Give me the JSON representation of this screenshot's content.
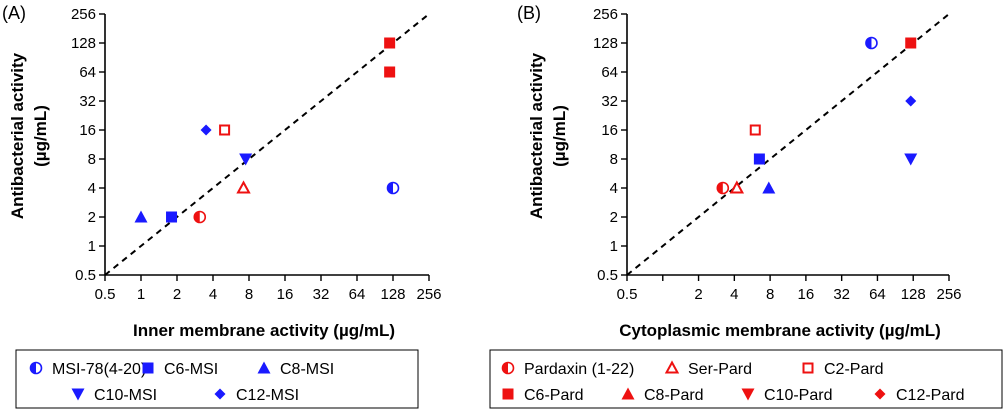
{
  "colors": {
    "blue": "#1a1aff",
    "red": "#ee1111"
  },
  "chart_data": [
    {
      "panel_label": "(A)",
      "type": "scatter",
      "xlabel": "Inner membrane activity (µg/mL)",
      "ylabel_line1": "Antibacterial activity",
      "ylabel_line2": "(µg/mL)",
      "x_scale": "log2",
      "y_scale": "log2",
      "xlim": [
        0.5,
        256
      ],
      "ylim": [
        0.5,
        256
      ],
      "ticks": [
        "0.5",
        "1",
        "2",
        "4",
        "8",
        "16",
        "32",
        "64",
        "128",
        "256"
      ],
      "reference_line": "y = x (dashed)",
      "legend_rows": [
        [
          {
            "name": "MSI-78(4-20)",
            "marker": "half-circle",
            "color": "blue"
          },
          {
            "name": "C6-MSI",
            "marker": "square",
            "color": "blue"
          },
          {
            "name": "C8-MSI",
            "marker": "triangle-up",
            "color": "blue"
          }
        ],
        [
          {
            "name": "C10-MSI",
            "marker": "triangle-down",
            "color": "blue"
          },
          {
            "name": "C12-MSI",
            "marker": "diamond",
            "color": "blue"
          }
        ]
      ],
      "series": [
        {
          "name": "MSI-78(4-20)",
          "marker": "half-circle",
          "color": "blue",
          "points": [
            [
              128,
              4
            ]
          ]
        },
        {
          "name": "C6-MSI",
          "marker": "square",
          "color": "blue",
          "points": [
            [
              1.8,
              2
            ]
          ]
        },
        {
          "name": "C8-MSI",
          "marker": "triangle-up",
          "color": "blue",
          "points": [
            [
              1,
              2
            ]
          ]
        },
        {
          "name": "C10-MSI",
          "marker": "triangle-down",
          "color": "blue",
          "points": [
            [
              7.5,
              8
            ]
          ]
        },
        {
          "name": "C12-MSI",
          "marker": "diamond",
          "color": "blue",
          "points": [
            [
              3.5,
              16
            ]
          ]
        },
        {
          "name": "Pardaxin (1-22)",
          "marker": "half-circle",
          "color": "red",
          "points": [
            [
              3.1,
              2
            ]
          ]
        },
        {
          "name": "Ser-Pard",
          "marker": "triangle-up-open",
          "color": "red",
          "points": [
            [
              7.2,
              4
            ]
          ]
        },
        {
          "name": "C2-Pard",
          "marker": "square-open",
          "color": "red",
          "points": [
            [
              5,
              16
            ]
          ]
        },
        {
          "name": "C6-Pard",
          "marker": "square",
          "color": "red",
          "points": [
            [
              120,
              64
            ],
            [
              120,
              128
            ]
          ]
        }
      ]
    },
    {
      "panel_label": "(B)",
      "type": "scatter",
      "xlabel": "Cytoplasmic membrane activity (µg/mL)",
      "ylabel_line1": "Antibacterial activity",
      "ylabel_line2": "(µg/mL)",
      "x_scale": "log2",
      "y_scale": "log2",
      "xlim": [
        0.5,
        256
      ],
      "ylim": [
        0.5,
        256
      ],
      "ticks": [
        "0.5",
        "1",
        "2",
        "4",
        "8",
        "16",
        "32",
        "64",
        "128",
        "256"
      ],
      "x_ticks_shown": [
        "0.5",
        "2",
        "4",
        "8",
        "16",
        "32",
        "64",
        "128",
        "256"
      ],
      "reference_line": "y = x (dashed)",
      "legend_rows": [
        [
          {
            "name": "Pardaxin (1-22)",
            "marker": "half-circle",
            "color": "red"
          },
          {
            "name": "Ser-Pard",
            "marker": "triangle-up-open",
            "color": "red"
          },
          {
            "name": "C2-Pard",
            "marker": "square-open",
            "color": "red"
          }
        ],
        [
          {
            "name": "C6-Pard",
            "marker": "square",
            "color": "red"
          },
          {
            "name": "C8-Pard",
            "marker": "triangle-up",
            "color": "red"
          },
          {
            "name": "C10-Pard",
            "marker": "triangle-down",
            "color": "red"
          },
          {
            "name": "C12-Pard",
            "marker": "diamond",
            "color": "red"
          }
        ]
      ],
      "series": [
        {
          "name": "Pardaxin (1-22)",
          "marker": "half-circle",
          "color": "red",
          "points": [
            [
              3.2,
              4
            ]
          ]
        },
        {
          "name": "Ser-Pard",
          "marker": "triangle-up-open",
          "color": "red",
          "points": [
            [
              4.2,
              4
            ]
          ]
        },
        {
          "name": "C2-Pard",
          "marker": "square-open",
          "color": "red",
          "points": [
            [
              6,
              16
            ]
          ]
        },
        {
          "name": "C6-Pard",
          "marker": "square",
          "color": "red",
          "points": [
            [
              122,
              128
            ]
          ]
        },
        {
          "name": "MSI-78(4-20)",
          "marker": "half-circle",
          "color": "blue",
          "points": [
            [
              57,
              128
            ]
          ]
        },
        {
          "name": "C6-MSI",
          "marker": "square",
          "color": "blue",
          "points": [
            [
              6.5,
              8
            ]
          ]
        },
        {
          "name": "C8-MSI",
          "marker": "triangle-up",
          "color": "blue",
          "points": [
            [
              7.8,
              4
            ]
          ]
        },
        {
          "name": "C10-MSI",
          "marker": "triangle-down",
          "color": "blue",
          "points": [
            [
              122,
              8
            ]
          ]
        },
        {
          "name": "C12-MSI",
          "marker": "diamond",
          "color": "blue",
          "points": [
            [
              122,
              32
            ]
          ]
        }
      ]
    }
  ]
}
